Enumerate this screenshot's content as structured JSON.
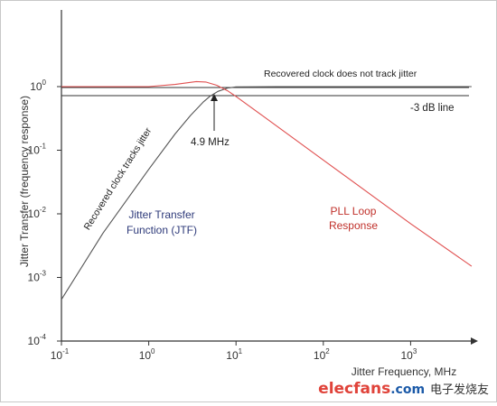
{
  "chart_data": {
    "type": "line",
    "title": "",
    "xlabel": "Jitter Frequency, MHz",
    "ylabel": "Jitter Transfer (frequency response)",
    "x_scale": "log",
    "y_scale": "log",
    "xlim": [
      0.1,
      5000
    ],
    "ylim": [
      0.0001,
      3
    ],
    "x_ticks": [
      {
        "value": 0.1,
        "base": "10",
        "exp": "-1"
      },
      {
        "value": 1,
        "base": "10",
        "exp": "0"
      },
      {
        "value": 10,
        "base": "10",
        "exp": "1"
      },
      {
        "value": 100,
        "base": "10",
        "exp": "2"
      },
      {
        "value": 1000,
        "base": "10",
        "exp": "3"
      }
    ],
    "y_ticks": [
      {
        "value": 1,
        "base": "10",
        "exp": "0"
      },
      {
        "value": 0.1,
        "base": "10",
        "exp": "-1"
      },
      {
        "value": 0.01,
        "base": "10",
        "exp": "-2"
      },
      {
        "value": 0.001,
        "base": "10",
        "exp": "-3"
      },
      {
        "value": 0.0001,
        "base": "10",
        "exp": "-4"
      }
    ],
    "grid": false,
    "series": [
      {
        "name": "Jitter Transfer Function (JTF)",
        "color": "#555555",
        "points": [
          [
            0.1,
            0.00045
          ],
          [
            0.3,
            0.005
          ],
          [
            1,
            0.05
          ],
          [
            2,
            0.18
          ],
          [
            3,
            0.35
          ],
          [
            4.2,
            0.57
          ],
          [
            5,
            0.7
          ],
          [
            6.2,
            0.84
          ],
          [
            8,
            0.95
          ],
          [
            10,
            0.99
          ],
          [
            30,
            1.0
          ],
          [
            5000,
            1.0
          ]
        ]
      },
      {
        "name": "PLL Loop Response",
        "color": "#e05050",
        "points": [
          [
            0.1,
            1.0
          ],
          [
            1,
            1.0
          ],
          [
            2,
            1.08
          ],
          [
            3.5,
            1.2
          ],
          [
            4.5,
            1.18
          ],
          [
            6,
            1.05
          ],
          [
            8,
            0.86
          ],
          [
            10,
            0.7
          ],
          [
            20,
            0.35
          ],
          [
            100,
            0.07
          ],
          [
            1000,
            0.007
          ],
          [
            5000,
            0.0015
          ]
        ]
      }
    ],
    "reference_lines": [
      {
        "y": 0.707,
        "label": "-3 dB line",
        "color": "#333333"
      },
      {
        "y": 1.0,
        "label": "Recovered clock does not track jitter",
        "color": "#333333"
      }
    ],
    "annotations": {
      "tracks_label": "Recovered clock tracks jitter",
      "crossover": {
        "x": 4.9,
        "label": "4.9 MHz"
      },
      "jtf_line1": "Jitter Transfer",
      "jtf_line2": "Function (JTF)",
      "pll_line1": "PLL Loop",
      "pll_line2": "Response"
    },
    "colors": {
      "jtf_text": "#2e3a7a",
      "pll_text": "#c0302a",
      "axis": "#333333"
    }
  },
  "watermark": {
    "main": "elecfans",
    "tld": ".com",
    "cn": "电子发烧友"
  }
}
